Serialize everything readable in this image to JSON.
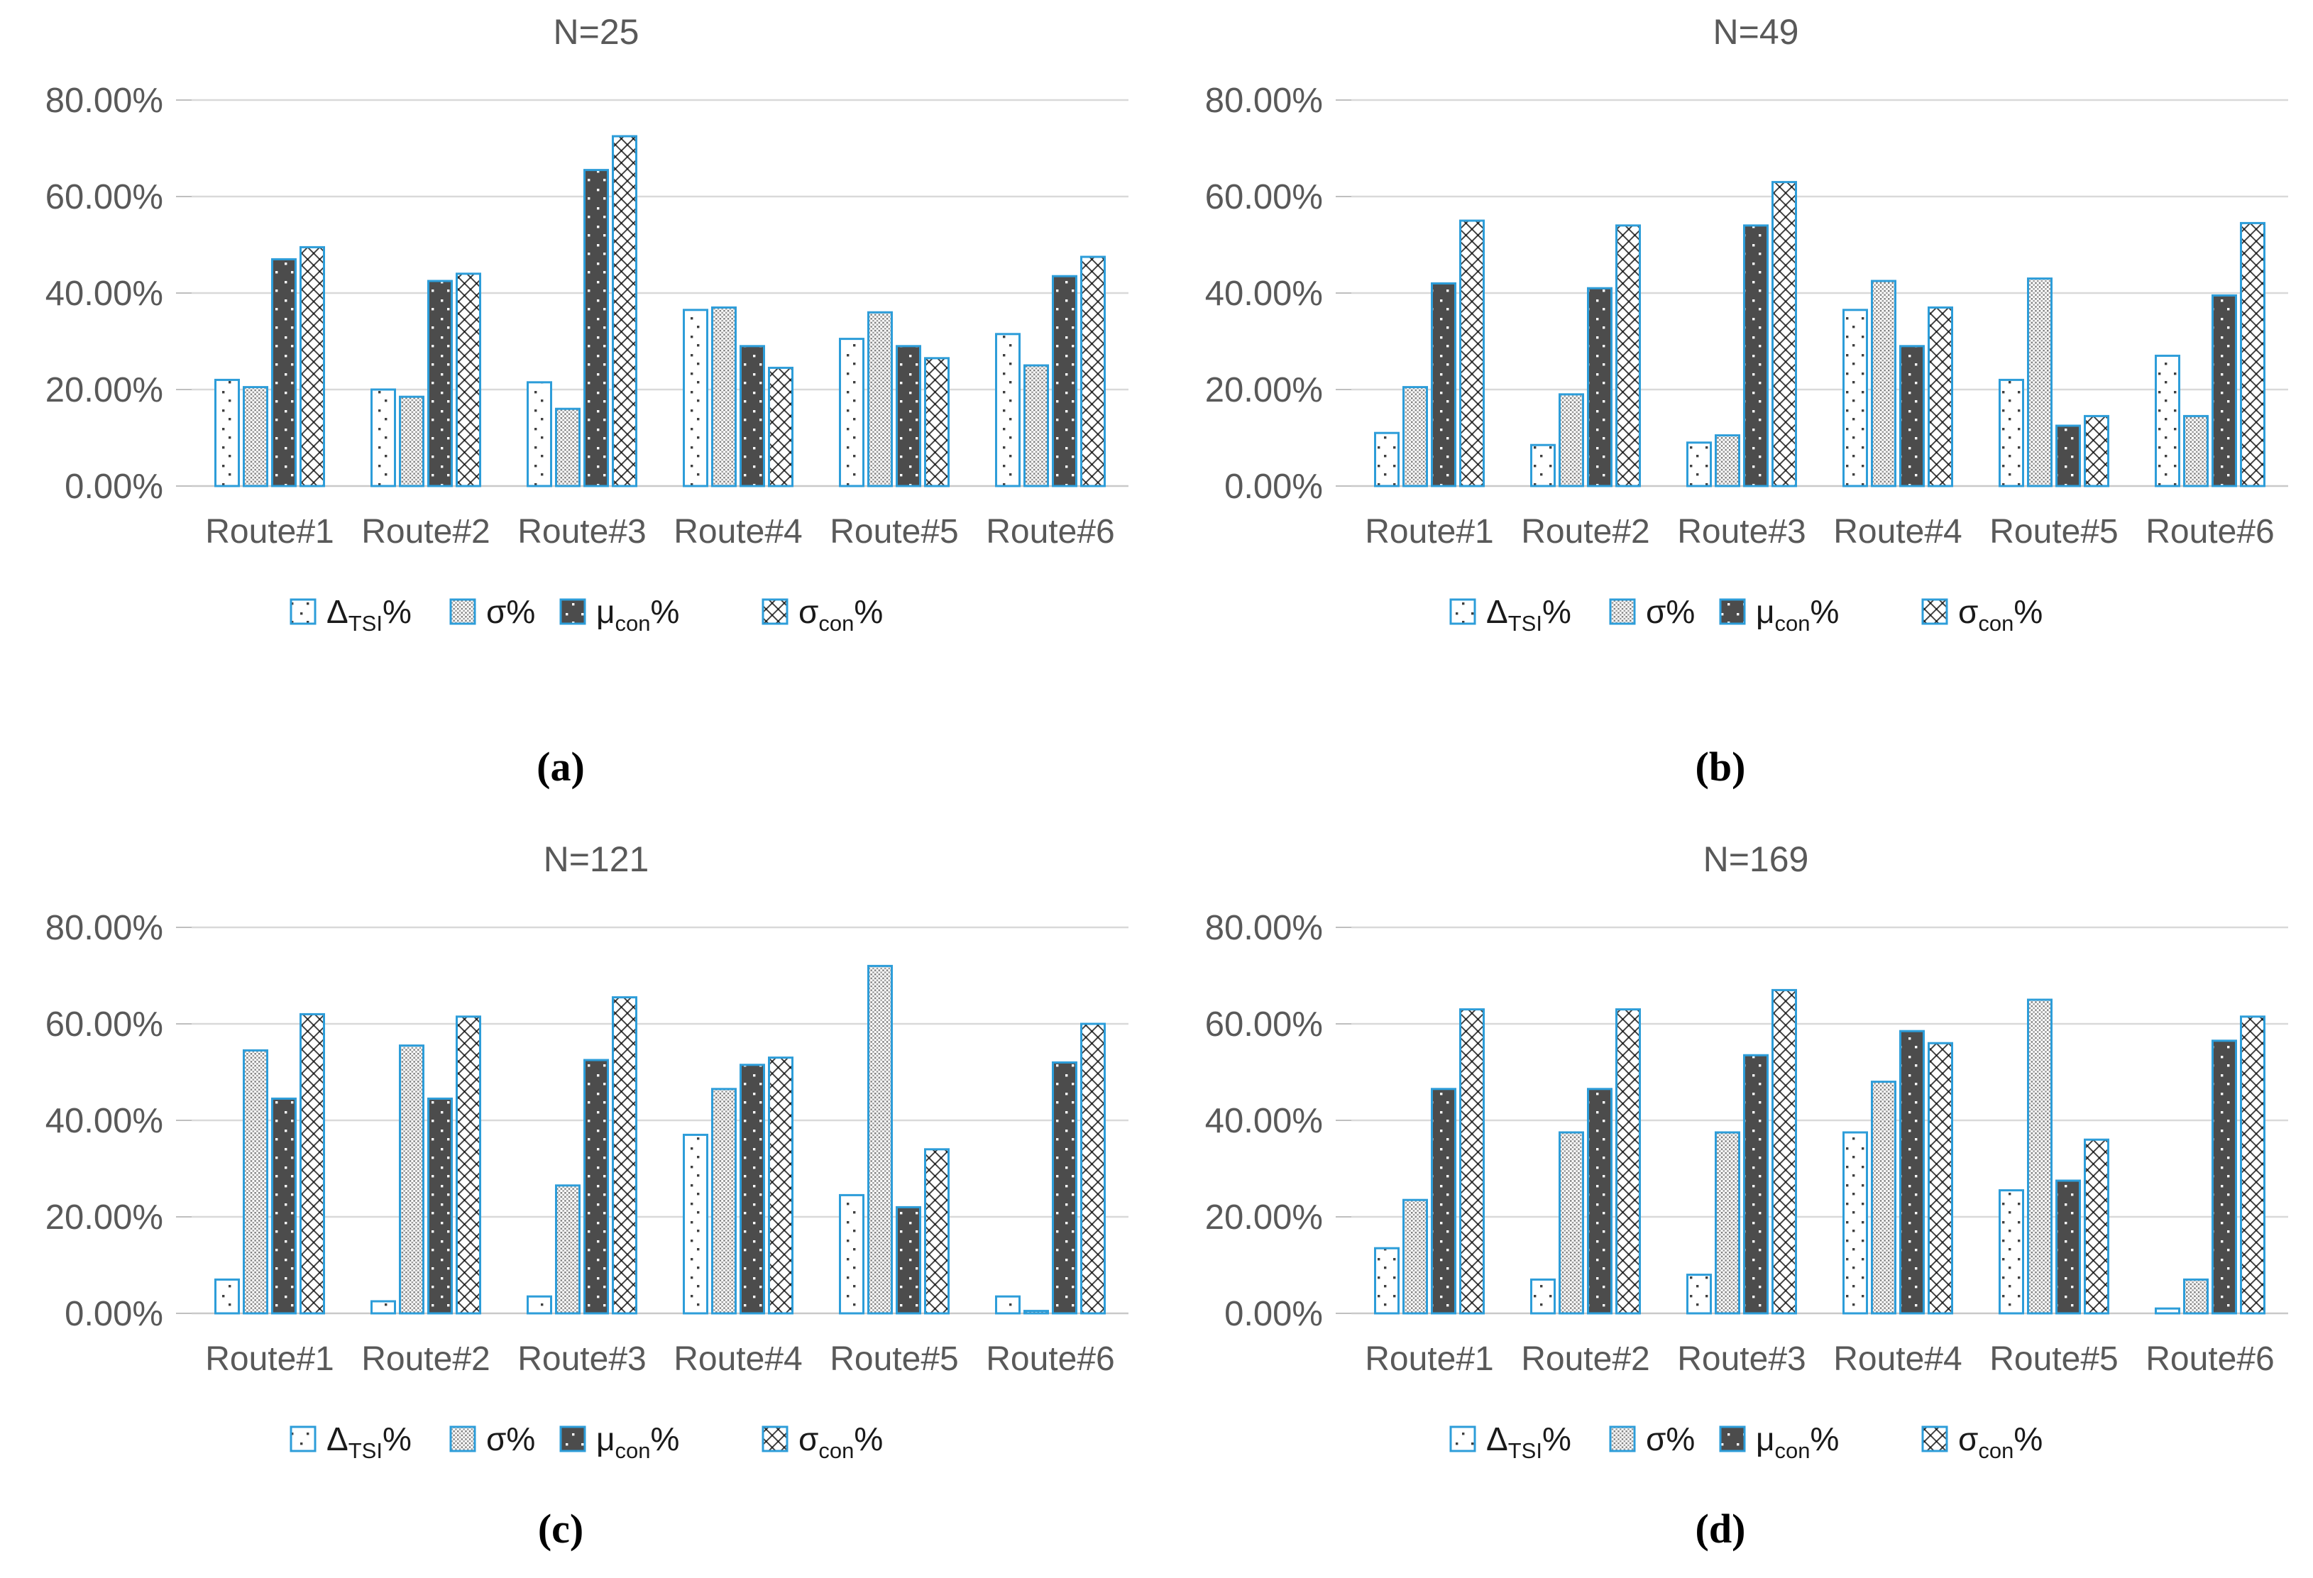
{
  "figure": {
    "background": "#ffffff",
    "description": "Four-panel grouped bar chart figure"
  },
  "colors": {
    "bar_outline_blue": "#2D9DD9",
    "dark_fill": "#4C4C4C",
    "pattern_dark": "#3F3F3F",
    "pattern_gray": "#7F7F7F",
    "axis_text": "#595959",
    "gridline": "#D9D9D9",
    "axis_line": "#C9C9C9",
    "legend_text": "#1A1A1A",
    "panel_letter": "#000000"
  },
  "axis": {
    "ymax": 80,
    "tick_step": 20,
    "tick_labels": [
      "80.00%",
      "60.00%",
      "40.00%",
      "20.00%",
      "0.00%"
    ],
    "grid": true
  },
  "categories": [
    "Route#1",
    "Route#2",
    "Route#3",
    "Route#4",
    "Route#5",
    "Route#6"
  ],
  "series_meta": [
    {
      "key": "delta_tsi",
      "label_main": "Δ",
      "label_sub": "TSI",
      "label_suffix": "%",
      "pattern": "sparse-dots"
    },
    {
      "key": "sigma",
      "label_main": "σ",
      "label_sub": "",
      "label_suffix": "%",
      "pattern": "dot-grid"
    },
    {
      "key": "mu_con",
      "label_main": "μ",
      "label_sub": "con",
      "label_suffix": "%",
      "pattern": "dark-white-dots"
    },
    {
      "key": "sigma_con",
      "label_main": "σ",
      "label_sub": "con",
      "label_suffix": "%",
      "pattern": "crosshatch"
    }
  ],
  "chart_data": [
    {
      "type": "bar",
      "panel_letter": "(a)",
      "title": "N=25",
      "categories": [
        "Route#1",
        "Route#2",
        "Route#3",
        "Route#4",
        "Route#5",
        "Route#6"
      ],
      "ylim": [
        0,
        80
      ],
      "legend_position": "bottom",
      "series": [
        {
          "name": "ΔTSI%",
          "values": [
            22.0,
            20.0,
            21.5,
            36.5,
            30.5,
            31.5
          ]
        },
        {
          "name": "σ%",
          "values": [
            20.5,
            18.5,
            16.0,
            37.0,
            36.0,
            25.0
          ]
        },
        {
          "name": "μcon%",
          "values": [
            47.0,
            42.5,
            65.5,
            29.0,
            29.0,
            43.5
          ]
        },
        {
          "name": "σcon%",
          "values": [
            49.5,
            44.0,
            72.5,
            24.5,
            26.5,
            47.5
          ]
        }
      ]
    },
    {
      "type": "bar",
      "panel_letter": "(b)",
      "title": "N=49",
      "categories": [
        "Route#1",
        "Route#2",
        "Route#3",
        "Route#4",
        "Route#5",
        "Route#6"
      ],
      "ylim": [
        0,
        80
      ],
      "legend_position": "bottom",
      "series": [
        {
          "name": "ΔTSI%",
          "values": [
            11.0,
            8.5,
            9.0,
            36.5,
            22.0,
            27.0
          ]
        },
        {
          "name": "σ%",
          "values": [
            20.5,
            19.0,
            10.5,
            42.5,
            43.0,
            14.5
          ]
        },
        {
          "name": "μcon%",
          "values": [
            42.0,
            41.0,
            54.0,
            29.0,
            12.5,
            39.5
          ]
        },
        {
          "name": "σcon%",
          "values": [
            55.0,
            54.0,
            63.0,
            37.0,
            14.5,
            54.5
          ]
        }
      ]
    },
    {
      "type": "bar",
      "panel_letter": "(c)",
      "title": "N=121",
      "categories": [
        "Route#1",
        "Route#2",
        "Route#3",
        "Route#4",
        "Route#5",
        "Route#6"
      ],
      "ylim": [
        0,
        80
      ],
      "legend_position": "bottom",
      "series": [
        {
          "name": "ΔTSI%",
          "values": [
            7.0,
            2.5,
            3.5,
            37.0,
            24.5,
            3.5
          ]
        },
        {
          "name": "σ%",
          "values": [
            54.5,
            55.5,
            26.5,
            46.5,
            72.0,
            0.5
          ]
        },
        {
          "name": "μcon%",
          "values": [
            44.5,
            44.5,
            52.5,
            51.5,
            22.0,
            52.0
          ]
        },
        {
          "name": "σcon%",
          "values": [
            62.0,
            61.5,
            65.5,
            53.0,
            34.0,
            60.0
          ]
        }
      ]
    },
    {
      "type": "bar",
      "panel_letter": "(d)",
      "title": "N=169",
      "categories": [
        "Route#1",
        "Route#2",
        "Route#3",
        "Route#4",
        "Route#5",
        "Route#6"
      ],
      "ylim": [
        0,
        80
      ],
      "legend_position": "bottom",
      "series": [
        {
          "name": "ΔTSI%",
          "values": [
            13.5,
            7.0,
            8.0,
            37.5,
            25.5,
            1.0
          ]
        },
        {
          "name": "σ%",
          "values": [
            23.5,
            37.5,
            37.5,
            48.0,
            65.0,
            7.0
          ]
        },
        {
          "name": "μcon%",
          "values": [
            46.5,
            46.5,
            53.5,
            58.5,
            27.5,
            56.5
          ]
        },
        {
          "name": "σcon%",
          "values": [
            63.0,
            63.0,
            67.0,
            56.0,
            36.0,
            61.5
          ]
        }
      ]
    }
  ]
}
